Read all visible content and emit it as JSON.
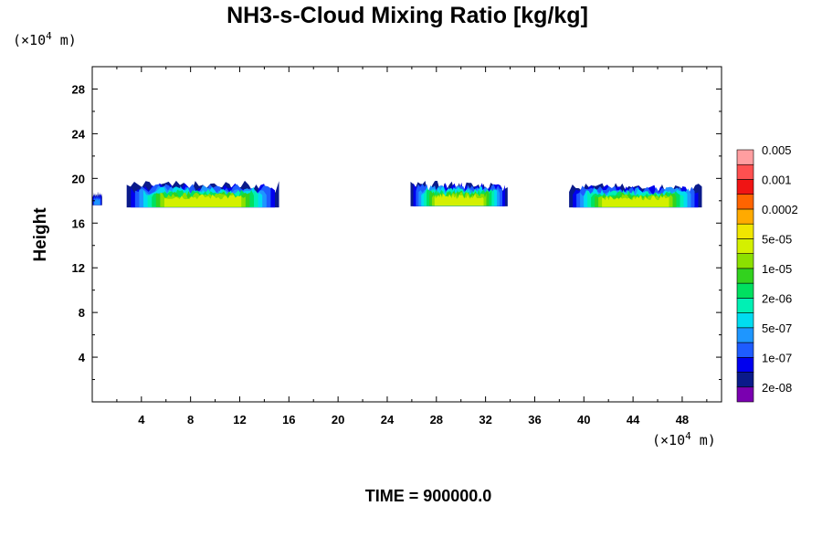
{
  "chart_data": {
    "type": "heatmap",
    "title": "NH3-s-Cloud Mixing Ratio [kg/kg]",
    "ylabel": "Height",
    "x_unit": {
      "prefix": "(×10",
      "exponent": "4",
      "suffix": " m)"
    },
    "y_unit": {
      "prefix": "(×10",
      "exponent": "4",
      "suffix": " m)"
    },
    "xlim": [
      0,
      51.2
    ],
    "ylim": [
      0,
      30
    ],
    "x_ticks": [
      "4",
      "8",
      "12",
      "16",
      "20",
      "24",
      "28",
      "32",
      "36",
      "40",
      "44",
      "48"
    ],
    "y_ticks": [
      "4",
      "8",
      "12",
      "16",
      "20",
      "24",
      "28"
    ],
    "colorbar": {
      "colors": [
        "#7a00b0",
        "#0a1a8a",
        "#0000ee",
        "#1e5cff",
        "#1e96ff",
        "#00dcf0",
        "#00f0b4",
        "#00e060",
        "#32d21e",
        "#8ce000",
        "#d4f000",
        "#f0e600",
        "#ffaa00",
        "#ff6400",
        "#f01414",
        "#ff5050",
        "#ff9ea0"
      ],
      "labels": [
        "2e-08",
        "1e-07",
        "5e-07",
        "2e-06",
        "1e-05",
        "5e-05",
        "0.0002",
        "0.001",
        "0.005"
      ]
    },
    "clouds": [
      {
        "x_range": [
          0,
          0.8
        ],
        "base": 17.6,
        "top": 18.8,
        "peak_level": 4
      },
      {
        "x_range": [
          2.8,
          15.2
        ],
        "base": 17.4,
        "top": 19.8,
        "peak_level": 10
      },
      {
        "x_range": [
          25.9,
          33.8
        ],
        "base": 17.5,
        "top": 19.8,
        "peak_level": 10
      },
      {
        "x_range": [
          38.8,
          49.6
        ],
        "base": 17.4,
        "top": 19.6,
        "peak_level": 10
      }
    ]
  },
  "footer": {
    "time_label": "TIME = 900000.0"
  }
}
